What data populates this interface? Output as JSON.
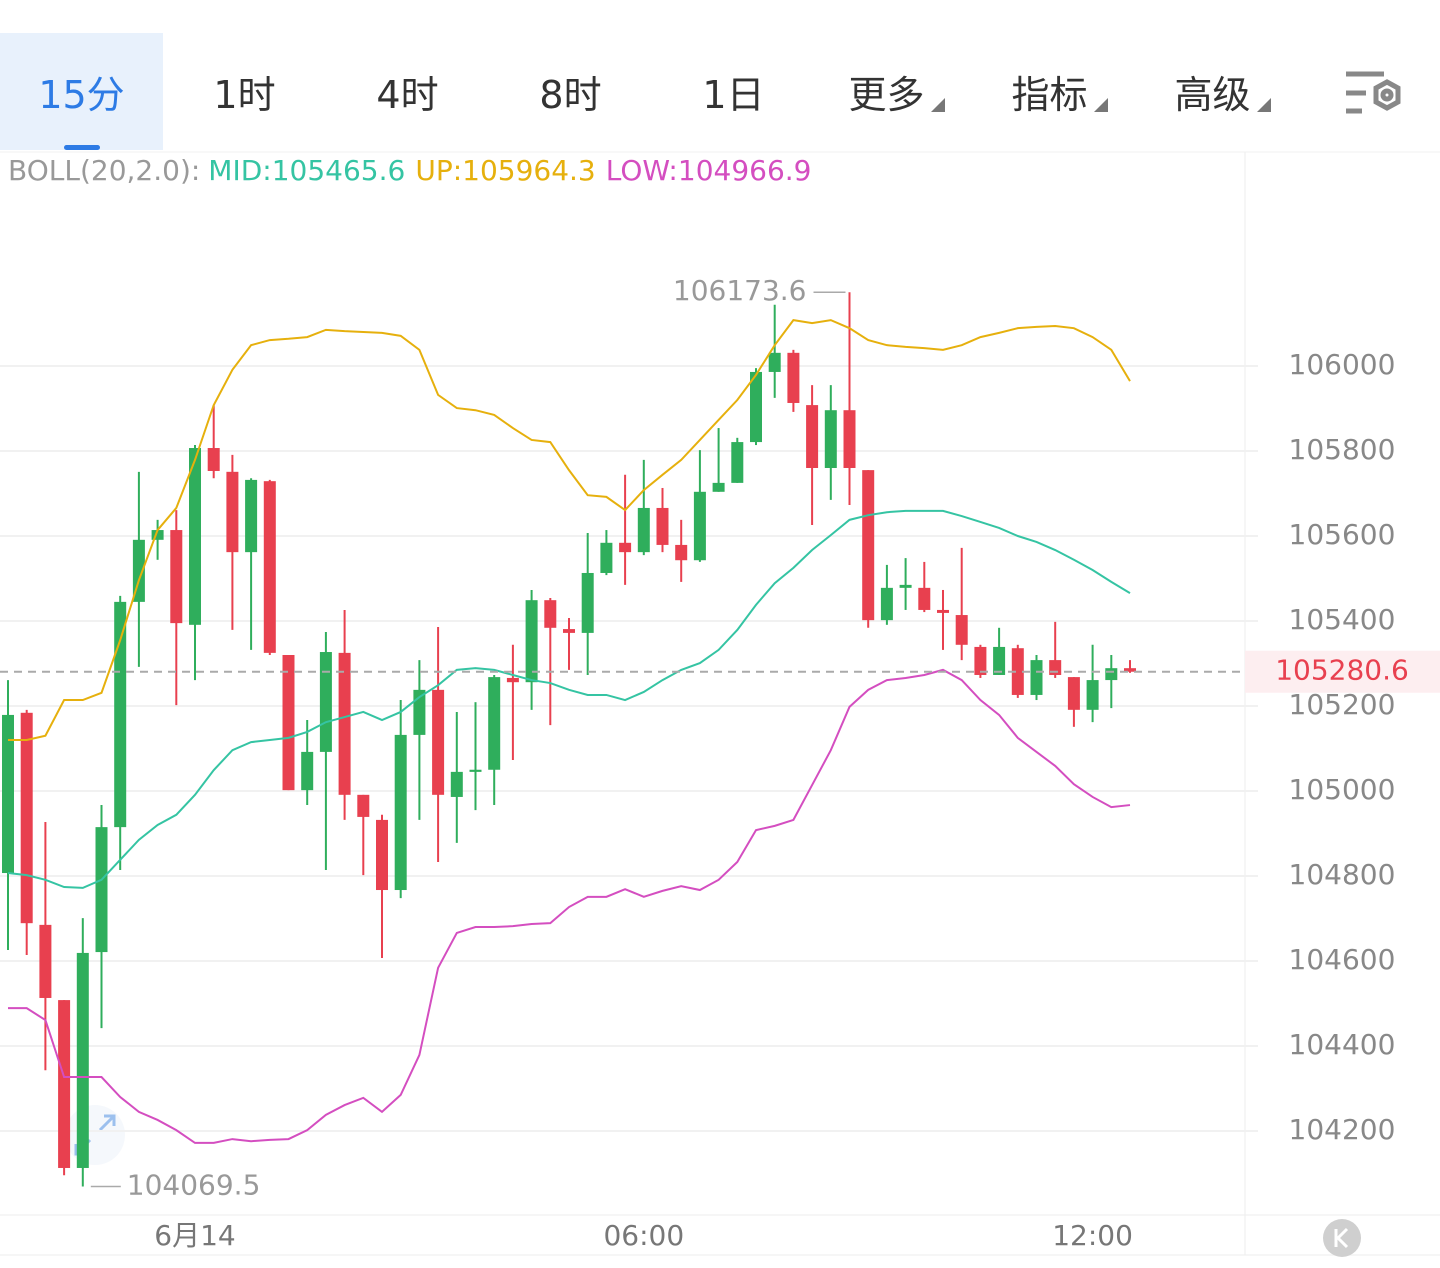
{
  "tabs": [
    {
      "label": "15分",
      "active": true
    },
    {
      "label": "1时"
    },
    {
      "label": "4时"
    },
    {
      "label": "8时"
    },
    {
      "label": "1日"
    },
    {
      "label": "更多",
      "dropdown": true
    },
    {
      "label": "指标",
      "dropdown": true
    },
    {
      "label": "高级",
      "dropdown": true
    }
  ],
  "chart_data": {
    "type": "candlestick",
    "indicator": "BOLL(20,2.0):",
    "categories": [
      null,
      null,
      null,
      null,
      null,
      null,
      null,
      null,
      null,
      null,
      "6月14",
      null,
      null,
      null,
      null,
      null,
      null,
      null,
      null,
      null,
      null,
      null,
      null,
      null,
      null,
      null,
      null,
      null,
      null,
      null,
      null,
      null,
      null,
      null,
      "06:00",
      null,
      null,
      null,
      null,
      null,
      null,
      null,
      null,
      null,
      null,
      null,
      null,
      null,
      null,
      null,
      null,
      null,
      null,
      null,
      null,
      null,
      null,
      null,
      "12:00",
      null,
      null
    ],
    "open": [
      104807,
      105184,
      104685,
      104508,
      104113,
      104621,
      104915,
      105445,
      105591,
      105614,
      105391,
      105807,
      105751,
      105562,
      105729,
      105320,
      105002,
      105092,
      105325,
      104991,
      104932,
      104767,
      105132,
      105238,
      104986,
      105045,
      105050,
      105266,
      105256,
      105449,
      105381,
      105372,
      105513,
      105584,
      105562,
      105666,
      105579,
      105543,
      105704,
      105725,
      105821,
      105986,
      106031,
      105908,
      105760,
      105896,
      105755,
      105402,
      105478,
      105478,
      105426,
      105414,
      105339,
      105273,
      105336,
      105226,
      105308,
      105268,
      105191,
      105261,
      105289
    ],
    "high": [
      105261,
      105191,
      104927,
      104508,
      104701,
      104967,
      105459,
      105751,
      105638,
      105661,
      105814,
      105908,
      105791,
      105736,
      105732,
      105320,
      105167,
      105374,
      105426,
      104991,
      104944,
      105214,
      105308,
      105386,
      105186,
      105209,
      105273,
      105344,
      105473,
      105454,
      105407,
      105607,
      105614,
      105744,
      105779,
      105713,
      105638,
      105802,
      105854,
      105831,
      105995,
      106144,
      106038,
      105955,
      105955,
      106173.6,
      105755,
      105532,
      105548,
      105539,
      105473,
      105572,
      105344,
      105384,
      105344,
      105320,
      105398,
      105268,
      105344,
      105320,
      105308
    ],
    "low": [
      104626,
      104614,
      104343,
      104096,
      104069.5,
      104442,
      104814,
      105292,
      105544,
      105202,
      105261,
      105736,
      105379,
      105332,
      105320,
      105002,
      104967,
      104814,
      104932,
      104802,
      104607,
      104748,
      104932,
      104833,
      104878,
      104955,
      104967,
      105073,
      105191,
      105155,
      105285,
      105273,
      105508,
      105485,
      105555,
      105562,
      105492,
      105539,
      105704,
      105725,
      105814,
      105925,
      105892,
      105626,
      105685,
      105673,
      105384,
      105391,
      105426,
      105421,
      105332,
      105308,
      105266,
      105273,
      105219,
      105214,
      105266,
      105151,
      105162,
      105195,
      105278
    ],
    "close": [
      105179,
      104689,
      104513,
      104113,
      104619,
      104915,
      105445,
      105591,
      105614,
      105395,
      105807,
      105753,
      105562,
      105732,
      105325,
      105002,
      105092,
      105327,
      104991,
      104939,
      104767,
      105132,
      105238,
      104991,
      105045,
      105050,
      105268,
      105256,
      105449,
      105384,
      105372,
      105513,
      105584,
      105562,
      105666,
      105579,
      105543,
      105704,
      105725,
      105821,
      105986,
      106031,
      105913,
      105760,
      105896,
      105760,
      105402,
      105478,
      105485,
      105426,
      105419,
      105344,
      105273,
      105339,
      105226,
      105308,
      105273,
      105191,
      105261,
      105289,
      105280.6
    ],
    "overlays": [
      {
        "name": "MID:",
        "color": "#35c4a3",
        "values": [
          104807,
          104802,
          104791,
          104774,
          104772,
          104791,
          104838,
          104885,
          104920,
          104944,
          104991,
          105049,
          105096,
          105115,
          105120,
          105125,
          105139,
          105162,
          105174,
          105186,
          105167,
          105186,
          105221,
          105249,
          105285,
          105289,
          105285,
          105273,
          105261,
          105254,
          105238,
          105226,
          105226,
          105214,
          105233,
          105261,
          105285,
          105301,
          105332,
          105379,
          105438,
          105489,
          105525,
          105567,
          105602,
          105638,
          105649,
          105656,
          105659,
          105659,
          105659,
          105647,
          105633,
          105619,
          105600,
          105586,
          105567,
          105544,
          105520,
          105492,
          105465.6
        ]
      },
      {
        "name": "UP:",
        "color": "#e6b00d",
        "values": [
          105120,
          105120,
          105130,
          105214,
          105214,
          105231,
          105355,
          105496,
          105614,
          105666,
          105779,
          105908,
          105991,
          106049,
          106061,
          106064,
          106068,
          106085,
          106082,
          106080,
          106078,
          106071,
          106038,
          105932,
          105901,
          105896,
          105885,
          105854,
          105826,
          105821,
          105755,
          105696,
          105692,
          105661,
          105708,
          105744,
          105779,
          105826,
          105873,
          105920,
          105979,
          106049,
          106108,
          106101,
          106108,
          106089,
          106061,
          106049,
          106045,
          106042,
          106038,
          106049,
          106068,
          106078,
          106089,
          106092,
          106094,
          106089,
          106068,
          106038,
          105964.3
        ]
      },
      {
        "name": "LOW:",
        "color": "#d44ec0",
        "values": [
          104489,
          104489,
          104461,
          104327,
          104327,
          104327,
          104280,
          104245,
          104226,
          104202,
          104172,
          104172,
          104181,
          104176,
          104179,
          104181,
          104202,
          104238,
          104261,
          104278,
          104245,
          104285,
          104379,
          104584,
          104666,
          104680,
          104680,
          104682,
          104687,
          104689,
          104727,
          104751,
          104751,
          104769,
          104751,
          104765,
          104776,
          104767,
          104791,
          104833,
          104908,
          104918,
          104932,
          105014,
          105096,
          105198,
          105238,
          105261,
          105266,
          105273,
          105285,
          105261,
          105214,
          105179,
          105125,
          105092,
          105059,
          105016,
          104986,
          104962,
          104966.9
        ]
      }
    ],
    "up_color": "#2fae5c",
    "down_color": "#e8404f",
    "ylim": [
      104000,
      106500
    ],
    "yticks": [
      104200,
      104400,
      104600,
      104800,
      105000,
      105200,
      105400,
      105600,
      105800,
      106000
    ],
    "grid": true
  }
}
